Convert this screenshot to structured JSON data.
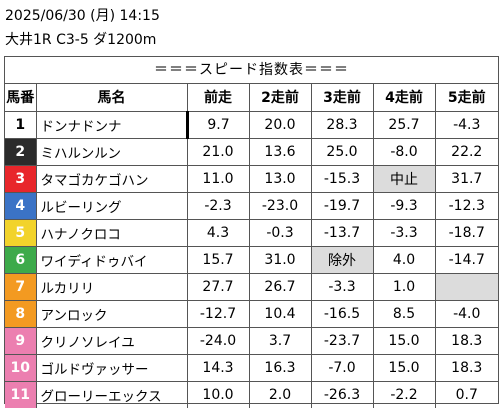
{
  "header": {
    "date_line": "2025/06/30 (月) 14:15",
    "race_line": "大井1R C3-5 ダ1200m"
  },
  "table": {
    "title": "＝＝＝スピード指数表＝＝＝",
    "columns": [
      "馬番",
      "馬名",
      "前走",
      "2走前",
      "3走前",
      "4走前",
      "5走前"
    ],
    "rows": [
      {
        "num": "1",
        "name": "ドンナドンナ",
        "v": [
          "9.7",
          "20.0",
          "28.3",
          "25.7",
          "-4.3"
        ],
        "bg": "#ffffff",
        "fg": "#000000"
      },
      {
        "num": "2",
        "name": "ミハルンルン",
        "v": [
          "21.0",
          "13.6",
          "25.0",
          "-8.0",
          "22.2"
        ],
        "bg": "#2b2b2b",
        "fg": "#ffffff"
      },
      {
        "num": "3",
        "name": "タマゴカケゴハン",
        "v": [
          "11.0",
          "13.0",
          "-15.3",
          "中止",
          "31.7"
        ],
        "bg": "#e8262b",
        "fg": "#ffffff"
      },
      {
        "num": "4",
        "name": "ルビーリング",
        "v": [
          "-2.3",
          "-23.0",
          "-19.7",
          "-9.3",
          "-12.3"
        ],
        "bg": "#3b73c6",
        "fg": "#ffffff"
      },
      {
        "num": "5",
        "name": "ハナノクロコ",
        "v": [
          "4.3",
          "-0.3",
          "-13.7",
          "-3.3",
          "-18.7"
        ],
        "bg": "#f2d32b",
        "fg": "#ffffff"
      },
      {
        "num": "6",
        "name": "ワイディドゥバイ",
        "v": [
          "15.7",
          "31.0",
          "除外",
          "4.0",
          "-14.7"
        ],
        "bg": "#3daa4a",
        "fg": "#ffffff"
      },
      {
        "num": "7",
        "name": "ルカリリ",
        "v": [
          "27.7",
          "26.7",
          "-3.3",
          "1.0",
          ""
        ],
        "bg": "#f39a21",
        "fg": "#ffffff"
      },
      {
        "num": "8",
        "name": "アンロック",
        "v": [
          "-12.7",
          "10.4",
          "-16.5",
          "8.5",
          "-4.0"
        ],
        "bg": "#f39a21",
        "fg": "#ffffff"
      },
      {
        "num": "9",
        "name": "クリノソレイユ",
        "v": [
          "-24.0",
          "3.7",
          "-23.7",
          "15.0",
          "18.3"
        ],
        "bg": "#ec7fb0",
        "fg": "#ffffff"
      },
      {
        "num": "10",
        "name": "ゴルドヴァッサー",
        "v": [
          "14.3",
          "16.3",
          "-7.0",
          "15.0",
          "18.3"
        ],
        "bg": "#ec7fb0",
        "fg": "#ffffff"
      },
      {
        "num": "11",
        "name": "グローリーエックス",
        "v": [
          "10.0",
          "2.0",
          "-26.3",
          "-2.2",
          "0.7"
        ],
        "bg": "#ec7fb0",
        "fg": "#ffffff"
      }
    ]
  }
}
